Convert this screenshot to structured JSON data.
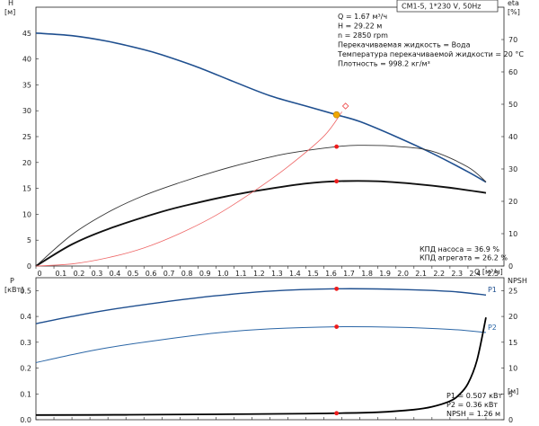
{
  "chart_data": [
    {
      "type": "line",
      "title": "CM1-5, 1*230 V, 50Hz",
      "xlabel": "Q [м³/ч]",
      "ylabel_left": "H [м]",
      "ylabel_right": "eta [%]",
      "x_ticks": [
        "0",
        "0.1",
        "0.2",
        "0.3",
        "0.4",
        "0.5",
        "0.6",
        "0.7",
        "0.8",
        "0.9",
        "1.0",
        "1.1",
        "1.2",
        "1.3",
        "1.4",
        "1.5",
        "1.6",
        "1.7",
        "1.8",
        "1.9",
        "2.0",
        "2.1",
        "2.2",
        "2.3",
        "2.4",
        "2.5"
      ],
      "y_ticks_left": [
        "0",
        "5",
        "10",
        "15",
        "20",
        "25",
        "30",
        "35",
        "40",
        "45"
      ],
      "y_ticks_right": [
        "0",
        "10",
        "20",
        "30",
        "40",
        "50",
        "60",
        "70"
      ],
      "xlim": [
        0,
        2.6
      ],
      "ylim": [
        0,
        50
      ],
      "ylim_right": [
        0,
        80
      ],
      "info_lines": [
        "Q = 1.67 м³/ч",
        "H = 29.22 м",
        "n = 2850 rpm",
        "Перекачиваемая жидкость = Вода",
        "Температура перекачиваемой жидкости = 20 °C",
        "Плотность = 998.2 кг/м³"
      ],
      "efficiency_text": [
        "КПД насоса = 36.9 %",
        "КПД агрегата = 26.2 %"
      ],
      "series": [
        {
          "key": "H",
          "axis": "left",
          "color": "#1f4f8f",
          "width": 1.6,
          "x": [
            0,
            0.2,
            0.4,
            0.6,
            0.7,
            0.9,
            1.1,
            1.3,
            1.5,
            1.67,
            1.8,
            2.0,
            2.2,
            2.4,
            2.5
          ],
          "y": [
            45,
            44.5,
            43.4,
            41.8,
            40.8,
            38.4,
            35.6,
            32.9,
            30.9,
            29.22,
            27.9,
            25.0,
            21.8,
            18.2,
            16.2
          ]
        },
        {
          "key": "eta_pump",
          "axis": "right",
          "color": "#333333",
          "width": 0.9,
          "x": [
            0,
            0.2,
            0.4,
            0.6,
            0.8,
            1.0,
            1.2,
            1.4,
            1.67,
            1.8,
            2.0,
            2.2,
            2.4,
            2.5
          ],
          "y": [
            0,
            9.7,
            16.6,
            21.8,
            25.8,
            29.3,
            32.3,
            34.8,
            36.9,
            37.3,
            37.0,
            35.5,
            30.6,
            26.0
          ]
        },
        {
          "key": "eta_total",
          "axis": "right",
          "color": "#111111",
          "width": 1.9,
          "x": [
            0,
            0.2,
            0.4,
            0.7,
            0.9,
            1.1,
            1.3,
            1.5,
            1.67,
            1.9,
            2.1,
            2.3,
            2.5
          ],
          "y": [
            0,
            6.7,
            11.4,
            16.8,
            19.6,
            22.0,
            23.9,
            25.5,
            26.2,
            26.2,
            25.4,
            24.2,
            22.6
          ]
        },
        {
          "key": "system",
          "axis": "left",
          "color": "#ee6666",
          "width": 0.8,
          "x": [
            0,
            0.2,
            0.4,
            0.6,
            0.8,
            1.0,
            1.2,
            1.4,
            1.6,
            1.7
          ],
          "y": [
            0,
            0.4,
            1.6,
            3.5,
            6.3,
            9.8,
            14.2,
            19.2,
            25.1,
            29.8
          ]
        }
      ],
      "markers": [
        {
          "x": 1.67,
          "y": 29.22,
          "axis": "left",
          "kind": "operating-point"
        },
        {
          "x": 1.72,
          "y": 30.9,
          "axis": "left",
          "kind": "diamond"
        },
        {
          "x": 1.67,
          "y": 36.9,
          "axis": "right",
          "kind": "dot"
        },
        {
          "x": 1.67,
          "y": 26.2,
          "axis": "right",
          "kind": "dot"
        }
      ]
    },
    {
      "type": "line",
      "ylabel_left": "P [кВт]",
      "ylabel_right": "NPSH [м]",
      "y_ticks_left": [
        "0.0",
        "0.1",
        "0.2",
        "0.3",
        "0.4",
        "0.5"
      ],
      "y_ticks_right": [
        "0",
        "5",
        "10",
        "15",
        "20",
        "25"
      ],
      "xlim": [
        0,
        2.6
      ],
      "ylim": [
        0,
        0.55
      ],
      "ylim_right": [
        0,
        27.5
      ],
      "info_lines": [
        "P1 = 0.507 кВт",
        "P2 = 0.36 кВт",
        "NPSH = 1.26 м"
      ],
      "series": [
        {
          "key": "P1",
          "name": "P1",
          "axis": "left",
          "color": "#1f4f8f",
          "width": 1.4,
          "x": [
            0,
            0.2,
            0.4,
            0.7,
            1.0,
            1.3,
            1.67,
            2.0,
            2.3,
            2.5
          ],
          "y": [
            0.372,
            0.4,
            0.425,
            0.455,
            0.48,
            0.498,
            0.507,
            0.505,
            0.497,
            0.483
          ]
        },
        {
          "key": "P2",
          "name": "P2",
          "axis": "left",
          "color": "#2b66a6",
          "width": 1.0,
          "x": [
            0,
            0.2,
            0.4,
            0.7,
            1.0,
            1.3,
            1.67,
            2.0,
            2.3,
            2.5
          ],
          "y": [
            0.221,
            0.252,
            0.279,
            0.31,
            0.336,
            0.352,
            0.36,
            0.358,
            0.35,
            0.338
          ]
        },
        {
          "key": "NPSH",
          "axis": "right",
          "color": "#000000",
          "width": 1.8,
          "x": [
            0,
            0.5,
            1.0,
            1.5,
            1.67,
            1.9,
            2.1,
            2.2,
            2.3,
            2.35,
            2.4,
            2.45,
            2.5
          ],
          "y": [
            0.9,
            0.95,
            1.05,
            1.18,
            1.26,
            1.45,
            1.95,
            2.5,
            3.6,
            4.8,
            7.0,
            11.5,
            19.8
          ]
        }
      ],
      "markers": [
        {
          "x": 1.67,
          "y": 0.507,
          "axis": "left",
          "kind": "dot"
        },
        {
          "x": 1.67,
          "y": 0.36,
          "axis": "left",
          "kind": "dot"
        },
        {
          "x": 1.67,
          "y": 1.26,
          "axis": "right",
          "kind": "dot"
        }
      ]
    }
  ]
}
